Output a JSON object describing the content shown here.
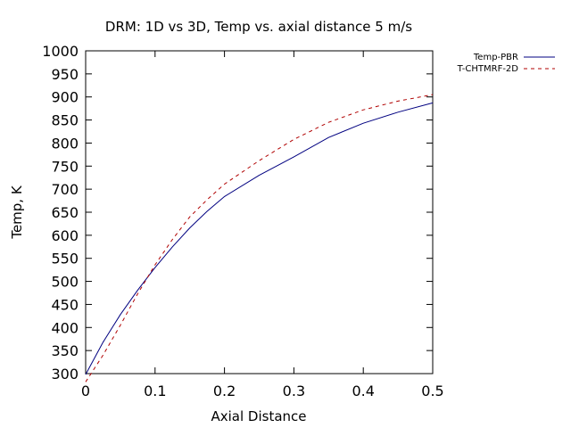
{
  "chart_data": {
    "type": "line",
    "title": "DRM: 1D vs 3D, Temp vs. axial distance 5 m/s",
    "xlabel": "Axial Distance",
    "ylabel": "Temp, K",
    "xlim": [
      0,
      0.5
    ],
    "ylim": [
      300,
      1000
    ],
    "xticks": [
      0,
      0.1,
      0.2,
      0.3,
      0.4,
      0.5
    ],
    "yticks": [
      300,
      350,
      400,
      450,
      500,
      550,
      600,
      650,
      700,
      750,
      800,
      850,
      900,
      950,
      1000
    ],
    "grid": false,
    "legend_position": "outside top-right",
    "series": [
      {
        "name": "Temp-PBR",
        "color": "#000080",
        "dash": "solid",
        "x": [
          0,
          0.025,
          0.05,
          0.075,
          0.1,
          0.125,
          0.15,
          0.175,
          0.2,
          0.25,
          0.3,
          0.35,
          0.4,
          0.45,
          0.5
        ],
        "y": [
          298,
          368,
          428,
          481,
          530,
          575,
          616,
          652,
          684,
          730,
          770,
          812,
          843,
          867,
          887
        ]
      },
      {
        "name": "T-CHTMRF-2D",
        "color": "#b00000",
        "dash": "dashed",
        "x": [
          0,
          0.025,
          0.05,
          0.075,
          0.1,
          0.125,
          0.15,
          0.175,
          0.2,
          0.25,
          0.3,
          0.35,
          0.4,
          0.45,
          0.5
        ],
        "y": [
          282,
          340,
          405,
          473,
          536,
          591,
          640,
          677,
          711,
          762,
          808,
          845,
          872,
          891,
          905
        ]
      }
    ]
  }
}
